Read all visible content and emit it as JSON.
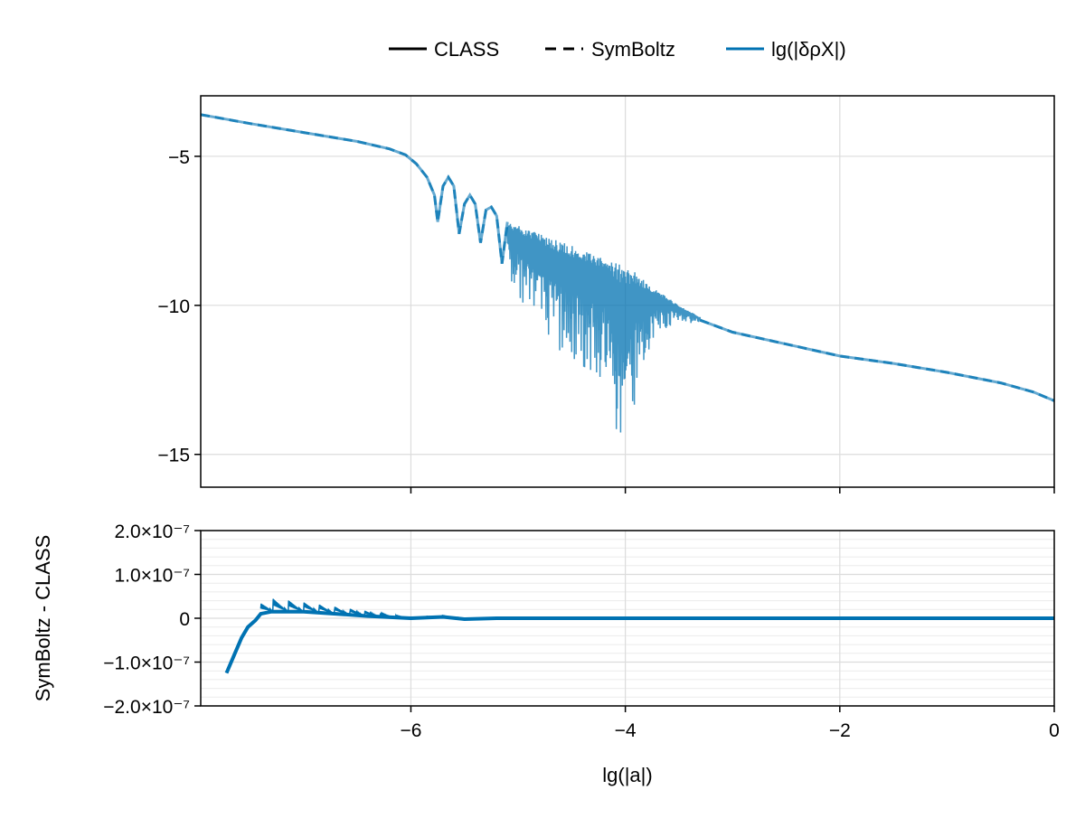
{
  "legend": {
    "placement": "top",
    "items": [
      {
        "label": "CLASS",
        "style": "solid",
        "color": "#000000"
      },
      {
        "label": "SymBoltz",
        "style": "dashed",
        "color": "#000000"
      },
      {
        "label": "lg(|δρX|)",
        "style": "solid",
        "color": "#0072b2"
      }
    ]
  },
  "chart_data": [
    {
      "type": "line",
      "xlim": [
        -7.96,
        0
      ],
      "ylim": [
        -16.1,
        -2.97
      ],
      "grid": true,
      "xticks": [
        -6,
        -4,
        -2,
        0
      ],
      "yticks": [
        -5,
        -10,
        -15
      ],
      "ytick_labels": [
        "−5",
        "−10",
        "−15"
      ],
      "color": "#0072b2",
      "series": [
        {
          "style": "solid+dashed",
          "points": [
            [
              -7.96,
              -3.6
            ],
            [
              -7.5,
              -3.9
            ],
            [
              -7.0,
              -4.2
            ],
            [
              -6.5,
              -4.5
            ],
            [
              -6.2,
              -4.75
            ],
            [
              -6.05,
              -4.95
            ],
            [
              -5.95,
              -5.25
            ],
            [
              -5.85,
              -5.7
            ],
            [
              -5.78,
              -6.3
            ],
            [
              -5.75,
              -7.2
            ],
            [
              -5.7,
              -6.0
            ],
            [
              -5.65,
              -5.7
            ],
            [
              -5.6,
              -6.0
            ],
            [
              -5.55,
              -7.6
            ],
            [
              -5.5,
              -6.6
            ],
            [
              -5.45,
              -6.3
            ],
            [
              -5.4,
              -6.6
            ],
            [
              -5.35,
              -7.9
            ],
            [
              -5.3,
              -6.8
            ],
            [
              -5.25,
              -6.7
            ],
            [
              -5.2,
              -7.0
            ],
            [
              -5.15,
              -8.6
            ],
            [
              -5.1,
              -7.2
            ]
          ]
        },
        {
          "style": "noisy-band",
          "x": [
            -5.1,
            -4.8,
            -4.5,
            -4.2,
            -4.0,
            -3.9,
            -3.7,
            -3.5,
            -3.3
          ],
          "upper": [
            -7.2,
            -7.6,
            -8.0,
            -8.4,
            -8.7,
            -8.9,
            -9.5,
            -10.0,
            -10.4
          ],
          "lower": [
            -9.0,
            -11.0,
            -12.0,
            -12.5,
            -15.5,
            -13.0,
            -11.0,
            -10.6,
            -10.6
          ]
        },
        {
          "style": "solid+dashed",
          "points": [
            [
              -3.3,
              -10.5
            ],
            [
              -3.0,
              -10.9
            ],
            [
              -2.5,
              -11.3
            ],
            [
              -2.0,
              -11.7
            ],
            [
              -1.5,
              -11.95
            ],
            [
              -1.0,
              -12.25
            ],
            [
              -0.5,
              -12.6
            ],
            [
              -0.2,
              -12.9
            ],
            [
              0,
              -13.2
            ]
          ]
        }
      ]
    },
    {
      "type": "line",
      "xlabel": "lg(|a|)",
      "ylabel": "SymBoltz - CLASS",
      "xlim": [
        -7.96,
        0
      ],
      "ylim": [
        -2e-07,
        2e-07
      ],
      "grid": true,
      "xticks": [
        -6,
        -4,
        -2,
        0
      ],
      "xtick_labels": [
        "−6",
        "−4",
        "−2",
        "0"
      ],
      "yticks": [
        2e-07,
        1e-07,
        0,
        -1e-07,
        -2e-07
      ],
      "ytick_labels": [
        "2.0×10⁻⁷",
        "1.0×10⁻⁷",
        "0",
        "−1.0×10⁻⁷",
        "−2.0×10⁻⁷"
      ],
      "color": "#0072b2",
      "series": [
        {
          "points": [
            [
              -7.72,
              -1.25e-07
            ],
            [
              -7.65,
              -8.5e-08
            ],
            [
              -7.58,
              -4.5e-08
            ],
            [
              -7.52,
              -2e-08
            ],
            [
              -7.45,
              -5e-09
            ],
            [
              -7.4,
              1e-08
            ],
            [
              -7.3,
              1.5e-08
            ],
            [
              -7.0,
              1.5e-08
            ],
            [
              -6.7,
              1e-08
            ],
            [
              -6.4,
              5e-09
            ],
            [
              -6.0,
              0.0
            ],
            [
              -5.7,
              3e-09
            ],
            [
              -5.5,
              -2e-09
            ],
            [
              -5.2,
              0.0
            ],
            [
              0,
              0.0
            ]
          ],
          "upper": [
            [
              -7.4,
              4e-08
            ],
            [
              -7.3,
              4.5e-08
            ],
            [
              -7.1,
              4e-08
            ],
            [
              -6.8,
              3e-08
            ],
            [
              -6.5,
              2e-08
            ],
            [
              -6.2,
              8e-09
            ],
            [
              -6.0,
              2e-09
            ],
            [
              -5.7,
              6e-09
            ],
            [
              -5.5,
              0.0
            ]
          ]
        }
      ]
    }
  ]
}
